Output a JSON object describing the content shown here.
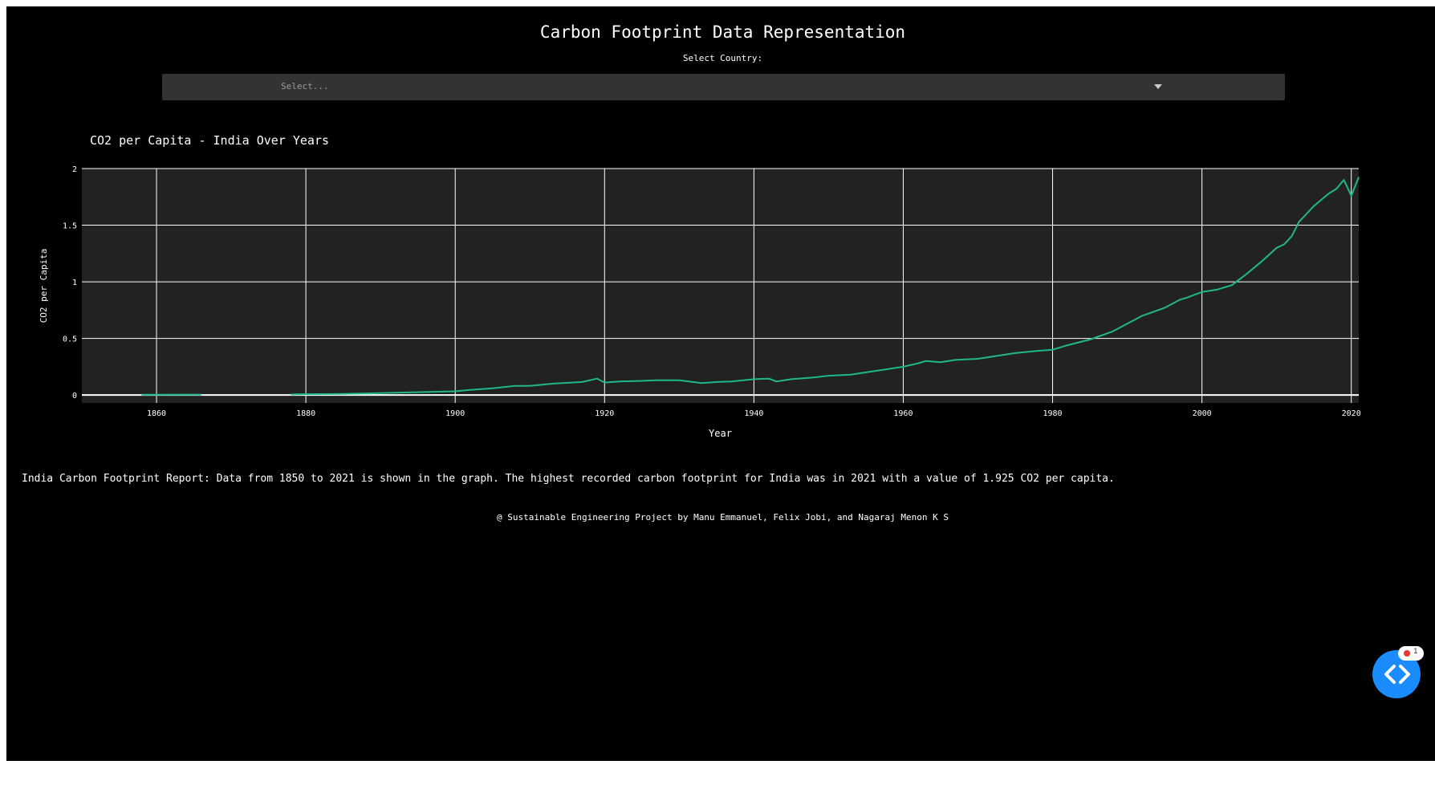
{
  "page": {
    "title": "Carbon Footprint Data Representation",
    "select_label": "Select Country:",
    "select_placeholder": "Select...",
    "report": "India Carbon Footprint Report: Data from 1850 to 2021 is shown in the graph. The highest recorded carbon footprint for India was in 2021 with a value of 1.925 CO2 per capita.",
    "footer": "@ Sustainable Engineering Project by Manu Emmanuel, Felix Jobi, and Nagaraj Menon K S",
    "badge_count": "1"
  },
  "colors": {
    "background": "#000000",
    "plot_bg": "#222222",
    "grid": "#ffffff",
    "line": "#20b88a",
    "dropdown": "#333333",
    "fab": "#1a8cff"
  },
  "icons": {
    "dropdown": "chevron-down-icon",
    "fab": "code-brackets-icon"
  },
  "chart_data": {
    "type": "line",
    "title": "CO2 per Capita - India Over Years",
    "xlabel": "Year",
    "ylabel": "CO2 per Capita",
    "xlim": [
      1850,
      2021
    ],
    "ylim": [
      -0.07,
      2.0
    ],
    "xticks": [
      1860,
      1880,
      1900,
      1920,
      1940,
      1960,
      1980,
      2000,
      2020
    ],
    "yticks": [
      0,
      0.5,
      1,
      1.5,
      2
    ],
    "ytick_labels": [
      "0",
      "0.5",
      "1",
      "1.5",
      "2"
    ],
    "grid": true,
    "series": [
      {
        "segments": [
          {
            "x": [
              1858,
              1866
            ],
            "y": [
              0.003,
              0.004
            ]
          },
          {
            "x": [
              1878,
              1880,
              1885,
              1890,
              1895,
              1900,
              1902,
              1905,
              1908,
              1910,
              1913,
              1917,
              1919,
              1920,
              1922,
              1925,
              1927,
              1930,
              1933,
              1935,
              1937,
              1940,
              1942,
              1943,
              1945,
              1948,
              1950,
              1953,
              1955,
              1957,
              1960,
              1962,
              1963,
              1965,
              1967,
              1970,
              1973,
              1975,
              1978,
              1980,
              1982,
              1985,
              1988,
              1990,
              1992,
              1995,
              1997,
              1998,
              2000,
              2002,
              2004,
              2006,
              2008,
              2010,
              2011,
              2012,
              2013,
              2015,
              2017,
              2018,
              2019,
              2020,
              2021
            ],
            "y": [
              0.005,
              0.007,
              0.01,
              0.017,
              0.025,
              0.033,
              0.045,
              0.06,
              0.08,
              0.08,
              0.1,
              0.115,
              0.145,
              0.11,
              0.12,
              0.125,
              0.13,
              0.13,
              0.105,
              0.115,
              0.12,
              0.14,
              0.145,
              0.12,
              0.14,
              0.155,
              0.17,
              0.18,
              0.2,
              0.22,
              0.25,
              0.28,
              0.3,
              0.29,
              0.31,
              0.32,
              0.35,
              0.37,
              0.39,
              0.4,
              0.44,
              0.49,
              0.56,
              0.63,
              0.7,
              0.77,
              0.84,
              0.86,
              0.91,
              0.93,
              0.97,
              1.07,
              1.18,
              1.3,
              1.33,
              1.4,
              1.53,
              1.67,
              1.78,
              1.82,
              1.9,
              1.76,
              1.925
            ]
          }
        ]
      }
    ]
  }
}
